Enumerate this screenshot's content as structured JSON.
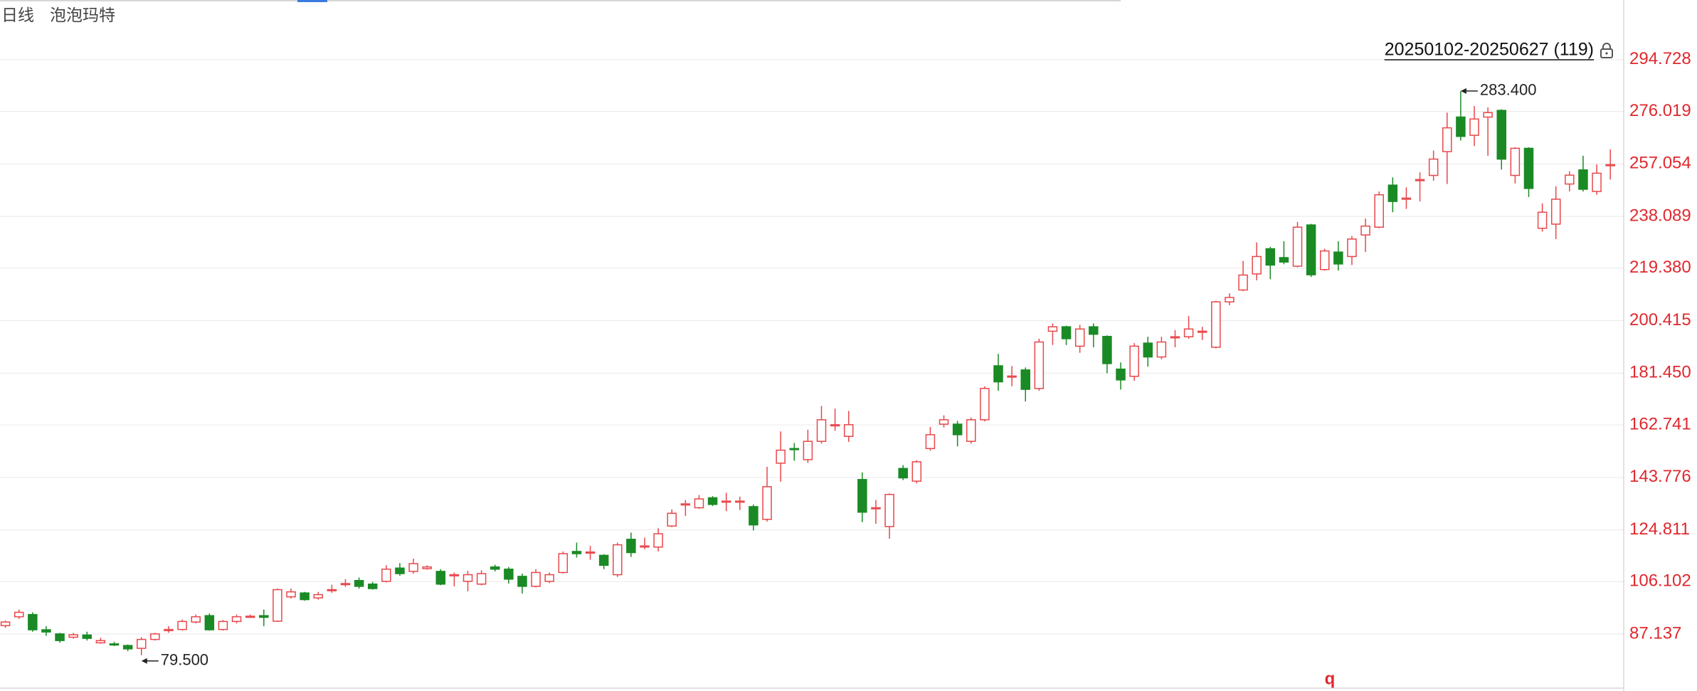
{
  "chart_data": {
    "type": "candlestick",
    "period": "日线",
    "title": "泡泡玛特",
    "range_label": "20250102-20250627 (119)",
    "marker_text": "q",
    "up_color": "#e8474b",
    "down_color": "#1a8a25",
    "grid": true,
    "ylim": [
      67.6,
      316.3
    ],
    "yticks": [
      87.137,
      106.102,
      124.811,
      143.776,
      162.741,
      {
        "value": 181.45,
        "label": "181.450"
      },
      200.415,
      {
        "value": 219.38,
        "label": "219.380"
      },
      238.089,
      257.054,
      276.019,
      294.728
    ],
    "annotations": [
      {
        "value": 283.4,
        "label": "283.400"
      },
      {
        "value": 79.5,
        "label": "79.500"
      }
    ],
    "open": [
      90.2,
      93.4,
      94.2,
      88.7,
      87.2,
      86.0,
      86.8,
      84.0,
      83.6,
      83.0,
      82.0,
      85.2,
      88.4,
      88.8,
      91.5,
      93.8,
      88.8,
      91.7,
      93.2,
      93.8,
      91.8,
      100.6,
      102.0,
      100.2,
      102.8,
      105,
      106.5,
      105.2,
      106.2,
      111,
      109.8,
      110.8,
      109.8,
      108.2,
      106.2,
      105.2,
      111.4,
      110.6,
      108,
      104.4,
      106.2,
      109.4,
      117,
      116.4,
      115.6,
      108.6,
      121.4,
      118.6,
      118.6,
      126.2,
      133.8,
      132.8,
      136.4,
      134.8,
      134.8,
      133.2,
      128.6,
      148.9,
      154.2,
      150.2,
      156.8,
      162.4,
      158.6,
      143,
      132.4,
      126,
      147,
      142.4,
      154.2,
      163,
      163,
      156.8,
      164.6,
      184.1,
      180,
      182.6,
      175.9,
      196.6,
      198.2,
      191.2,
      198.2,
      194.7,
      182.9,
      180.3,
      192.3,
      187.3,
      194.2,
      194.6,
      196.2,
      190.8,
      207.2,
      211.5,
      217.3,
      226.4,
      223.2,
      220.1,
      235,
      218.9,
      225.2,
      223.6,
      231.4,
      234.2,
      249.4,
      244.3,
      251,
      252.9,
      261.5,
      274,
      267.4,
      274,
      276.4,
      252.9,
      262.7,
      233.8,
      235.3,
      249.8,
      254.9,
      247.1,
      256.4
    ],
    "high": [
      92.0,
      96,
      95,
      90,
      87.6,
      87.6,
      88,
      85.8,
      84.4,
      83.4,
      86,
      87.6,
      90,
      92.4,
      94.2,
      94.6,
      92.2,
      94.2,
      94.2,
      96,
      103.6,
      103.6,
      102.4,
      102.4,
      105,
      107,
      107.6,
      106,
      112,
      112.8,
      114.4,
      112,
      110.6,
      109.4,
      110,
      110.2,
      112.2,
      111.4,
      109,
      110.6,
      109.4,
      117,
      120.2,
      119,
      116,
      120.2,
      123.8,
      122,
      125.4,
      132.2,
      135.6,
      137.4,
      137,
      138.2,
      136.8,
      134,
      147.6,
      160.4,
      156.2,
      161,
      169.6,
      168.6,
      167.8,
      145.6,
      135.6,
      138,
      148.2,
      150,
      162,
      166.2,
      164.2,
      165.4,
      176.7,
      188.4,
      184,
      183.5,
      193.9,
      199.4,
      198.6,
      198.9,
      199.4,
      195.1,
      185.3,
      192.3,
      194.6,
      194.6,
      197,
      202.1,
      198.2,
      207.6,
      210.3,
      222,
      228.7,
      227.1,
      229.1,
      236.1,
      235.4,
      226.4,
      229.1,
      231,
      237.3,
      247.1,
      252.2,
      248.6,
      254,
      261.9,
      275.6,
      283.4,
      278,
      277.5,
      276.8,
      263.1,
      263.1,
      242.8,
      249,
      254.4,
      260,
      256.9,
      262.3
    ],
    "low": [
      89.4,
      92.6,
      88.0,
      86.5,
      84.0,
      85.5,
      84.8,
      83.6,
      82.8,
      81.0,
      79.5,
      84.8,
      87.6,
      88.4,
      91,
      88.4,
      88.4,
      91,
      93,
      90,
      91.5,
      100,
      99.2,
      99.6,
      102,
      104.2,
      103.6,
      103.2,
      105.8,
      108.2,
      109,
      110.4,
      104.8,
      104.4,
      102.6,
      104.8,
      109.8,
      105.4,
      101.8,
      104,
      105.6,
      109,
      114.8,
      114,
      110.6,
      107.8,
      115,
      117.8,
      117,
      125.8,
      129.8,
      132.4,
      133.4,
      131.6,
      132,
      124.6,
      127.8,
      142.2,
      149.8,
      149,
      156,
      160.6,
      156.6,
      127.6,
      127,
      121.6,
      142.8,
      141.6,
      153.4,
      161.8,
      155,
      156,
      164,
      175.1,
      176.7,
      171.2,
      175.1,
      191.6,
      191.6,
      188.8,
      190.8,
      181.4,
      175.5,
      178.7,
      183.8,
      186.5,
      190.8,
      193.9,
      193.4,
      190.4,
      206,
      211.1,
      215,
      215.4,
      220.8,
      219.7,
      216.2,
      218.5,
      218.5,
      220.5,
      225.2,
      233.8,
      239.6,
      240.8,
      243.5,
      251,
      249.8,
      265.5,
      263.5,
      260,
      255,
      250,
      245.1,
      232.6,
      229.9,
      247.1,
      247.1,
      245.9,
      251.4
    ],
    "close": [
      91.5,
      95.0,
      88.7,
      87.9,
      84.8,
      86.9,
      85.6,
      84.8,
      83.2,
      81.8,
      85.2,
      87.2,
      88.8,
      91.7,
      93.4,
      88.7,
      91.7,
      93.4,
      93.6,
      93.2,
      103.2,
      102.4,
      99.6,
      101.4,
      103.2,
      105.4,
      104.4,
      103.6,
      110.6,
      109,
      112.6,
      111.4,
      105.2,
      108.6,
      108.6,
      109,
      110.6,
      107,
      104.4,
      109.4,
      108.6,
      116.2,
      116.2,
      116.8,
      112,
      119.4,
      116.6,
      119,
      123.4,
      130.8,
      134.2,
      136,
      134,
      135.2,
      135.2,
      126.6,
      140.4,
      153.6,
      153.8,
      156.8,
      164.6,
      162.8,
      162.8,
      131.2,
      132.8,
      137.6,
      143.6,
      149.4,
      159.2,
      164.6,
      159.2,
      164.6,
      175.9,
      178.3,
      180.4,
      175.6,
      192.7,
      198.2,
      193.9,
      197.4,
      195.5,
      184.9,
      179,
      191.2,
      187.3,
      192.7,
      194.6,
      197.4,
      196.6,
      207.2,
      208.8,
      216.9,
      223.6,
      220.5,
      221.6,
      234.2,
      217,
      225.6,
      220.9,
      229.9,
      234.6,
      245.9,
      243.5,
      244.7,
      251.4,
      258.8,
      270.1,
      267,
      273.3,
      275.6,
      258.8,
      262.7,
      248.2,
      239.6,
      244.3,
      253,
      247.9,
      253.7,
      256.8
    ]
  }
}
